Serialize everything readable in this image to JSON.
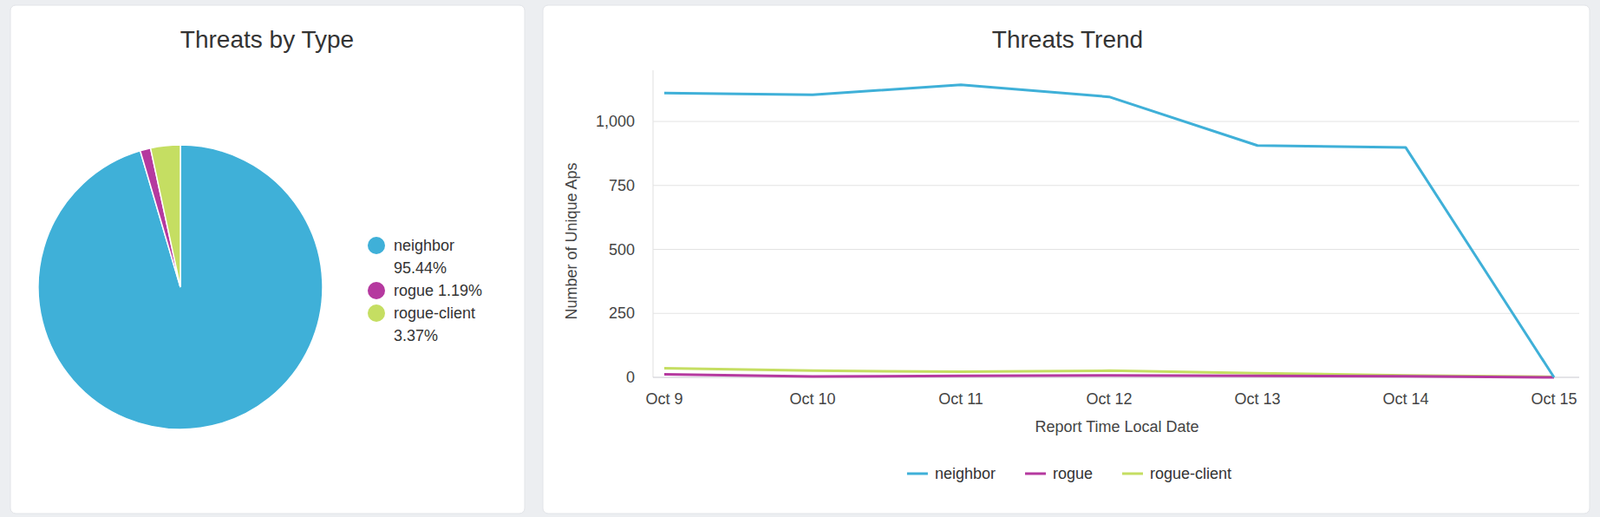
{
  "chart_data": [
    {
      "type": "pie",
      "title": "Threats by Type",
      "categories": [
        "neighbor",
        "rogue",
        "rogue-client"
      ],
      "values": [
        95.44,
        1.19,
        3.37
      ],
      "value_labels": [
        "95.44%",
        "1.19%",
        "3.37%"
      ],
      "colors": [
        "#3fb0d8",
        "#b5399f",
        "#c5de62"
      ],
      "legend": "right"
    },
    {
      "type": "line",
      "title": "Threats Trend",
      "x_label": "Report Time Local Date",
      "y_label": "Number of Unique Aps",
      "categories": [
        "Oct 9",
        "Oct 10",
        "Oct 11",
        "Oct 12",
        "Oct 13",
        "Oct 14",
        "Oct 15"
      ],
      "series": [
        {
          "name": "neighbor",
          "color": "#3fb0d8",
          "values": [
            1111,
            1104,
            1143,
            1096,
            906,
            898,
            0
          ]
        },
        {
          "name": "rogue",
          "color": "#b5399f",
          "values": [
            12,
            3,
            6,
            8,
            6,
            4,
            0
          ]
        },
        {
          "name": "rogue-client",
          "color": "#c5de62",
          "values": [
            36,
            26,
            22,
            26,
            16,
            8,
            2
          ]
        }
      ],
      "ylim": [
        0,
        1200
      ],
      "yticks": [
        0,
        250,
        500,
        750,
        {
          "value": 1000,
          "label": "1,000"
        }
      ],
      "grid": true,
      "legend": "bottom"
    }
  ]
}
